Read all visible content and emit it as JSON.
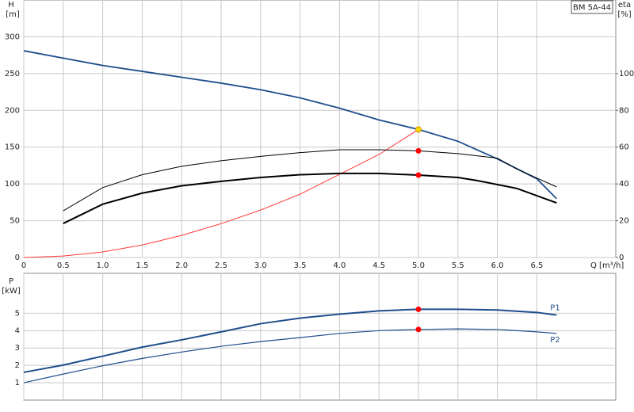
{
  "chart_data": [
    {
      "type": "line",
      "title": "BM 5A-44",
      "x_label": "Q [m³/h]",
      "y_label": "H",
      "y_unit": "[m]",
      "y2_label": "eta",
      "y2_unit": "[%]",
      "xlim": [
        0,
        7.5
      ],
      "xticks": [
        0,
        0.5,
        {
          "value": 1,
          "label": "1.0"
        },
        1.5,
        {
          "value": 2,
          "label": "2.0"
        },
        2.5,
        {
          "value": 3,
          "label": "3.0"
        },
        3.5,
        {
          "value": 4,
          "label": "4.0"
        },
        4.5,
        {
          "value": 5,
          "label": "5.0"
        },
        5.5,
        {
          "value": 6,
          "label": "6.0"
        },
        6.5
      ],
      "ylim": [
        0,
        350
      ],
      "yticks": [
        0,
        50,
        100,
        150,
        200,
        250,
        300
      ],
      "y2lim": [
        0,
        140
      ],
      "y2ticks": [
        0,
        20,
        40,
        60,
        80,
        100
      ],
      "grid": true,
      "series": [
        {
          "color": "#1f4e8c",
          "line_width": 1.8,
          "x": [
            0,
            0.5,
            1,
            1.5,
            2,
            2.5,
            3,
            3.5,
            4,
            4.5,
            5,
            5.5,
            6,
            6.5,
            6.75
          ],
          "values": [
            281,
            271,
            261,
            253,
            245,
            237,
            228,
            217,
            203,
            187,
            174,
            158,
            134,
            107,
            80
          ]
        },
        {
          "color": "#ff3b3b",
          "line_width": 1,
          "x": [
            0,
            0.5,
            1,
            1.5,
            2,
            2.5,
            3,
            3.5,
            4,
            4.5,
            5
          ],
          "values": [
            0,
            2,
            7.5,
            17,
            30,
            46,
            64.5,
            86,
            113,
            140,
            174
          ]
        },
        {
          "color": "#000000",
          "line_width": 1,
          "axis": "y2",
          "x": [
            0.5,
            1,
            1.5,
            2,
            2.5,
            3,
            3.5,
            4,
            4.5,
            5,
            5.5,
            6,
            6.25,
            6.75
          ],
          "values": [
            25.4,
            38,
            45,
            49.6,
            52.6,
            55,
            57,
            58.6,
            58.6,
            58,
            56.5,
            54,
            48,
            38.4
          ]
        },
        {
          "color": "#000000",
          "line_width": 2,
          "axis": "y2",
          "x": [
            0.5,
            1,
            1.5,
            2,
            2.5,
            3,
            3.5,
            4,
            4.5,
            5,
            5.5,
            5.75,
            6.25,
            6.75
          ],
          "values": [
            18.5,
            29,
            35,
            39,
            41.4,
            43.5,
            45,
            45.7,
            45.7,
            44.8,
            43.5,
            41.8,
            37.5,
            29.7
          ]
        }
      ],
      "markers": [
        {
          "x": 5,
          "y": 174,
          "color": "#ffd700"
        },
        {
          "x": 5,
          "y": 58,
          "axis": "y2",
          "color": "#ff0000"
        },
        {
          "x": 5,
          "y": 44.8,
          "axis": "y2",
          "color": "#ff0000"
        }
      ]
    },
    {
      "type": "line",
      "y_label": "P",
      "y_unit": "[kW]",
      "xlim": [
        0,
        7.5
      ],
      "xticks": [
        0,
        0.5,
        1,
        1.5,
        2,
        2.5,
        3,
        3.5,
        4,
        4.5,
        5,
        5.5,
        6,
        6.5
      ],
      "show_xtick_labels": false,
      "ylim": [
        0,
        7.3
      ],
      "yticks": [
        1,
        2,
        3,
        4,
        5
      ],
      "grid": true,
      "series": [
        {
          "name": "P1",
          "color": "#1f4e8c",
          "line_width": 2,
          "x": [
            0,
            0.5,
            1,
            1.5,
            2,
            2.5,
            3,
            3.5,
            4,
            4.5,
            5,
            5.5,
            6,
            6.5,
            6.75
          ],
          "values": [
            1.6,
            2.02,
            2.53,
            3.05,
            3.47,
            3.93,
            4.4,
            4.72,
            4.95,
            5.14,
            5.23,
            5.23,
            5.19,
            5.05,
            4.9
          ]
        },
        {
          "name": "P2",
          "color": "#1f4e8c",
          "line_width": 1.2,
          "x": [
            0,
            0.5,
            1,
            1.5,
            2,
            2.5,
            3,
            3.5,
            4,
            4.5,
            5,
            5.5,
            6,
            6.5,
            6.75
          ],
          "values": [
            1,
            1.5,
            1.98,
            2.4,
            2.77,
            3.1,
            3.37,
            3.6,
            3.84,
            4,
            4.07,
            4.1,
            4.07,
            3.93,
            3.84
          ]
        }
      ],
      "markers": [
        {
          "x": 5,
          "y": 5.23,
          "color": "#ff0000"
        },
        {
          "x": 5,
          "y": 4.07,
          "color": "#ff0000"
        }
      ]
    }
  ]
}
